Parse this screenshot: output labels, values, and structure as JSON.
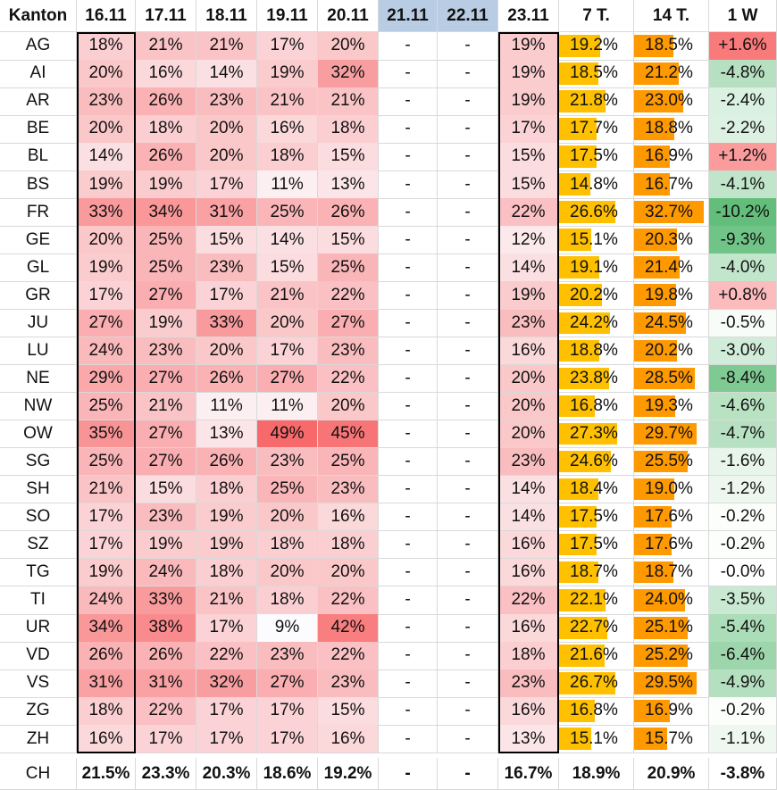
{
  "chart_data": {
    "type": "table",
    "columns": [
      "Kanton",
      "16.11",
      "17.11",
      "18.11",
      "19.11",
      "20.11",
      "21.11",
      "22.11",
      "23.11",
      "7 T.",
      "14 T.",
      "1 W"
    ],
    "rows": [
      [
        "AG",
        "18%",
        "21%",
        "21%",
        "17%",
        "20%",
        "-",
        "-",
        "19%",
        "19.2%",
        "18.5%",
        "+1.6%"
      ],
      [
        "AI",
        "20%",
        "16%",
        "14%",
        "19%",
        "32%",
        "-",
        "-",
        "19%",
        "18.5%",
        "21.2%",
        "-4.8%"
      ],
      [
        "AR",
        "23%",
        "26%",
        "23%",
        "21%",
        "21%",
        "-",
        "-",
        "19%",
        "21.8%",
        "23.0%",
        "-2.4%"
      ],
      [
        "BE",
        "20%",
        "18%",
        "20%",
        "16%",
        "18%",
        "-",
        "-",
        "17%",
        "17.7%",
        "18.8%",
        "-2.2%"
      ],
      [
        "BL",
        "14%",
        "26%",
        "20%",
        "18%",
        "15%",
        "-",
        "-",
        "15%",
        "17.5%",
        "16.9%",
        "+1.2%"
      ],
      [
        "BS",
        "19%",
        "19%",
        "17%",
        "11%",
        "13%",
        "-",
        "-",
        "15%",
        "14.8%",
        "16.7%",
        "-4.1%"
      ],
      [
        "FR",
        "33%",
        "34%",
        "31%",
        "25%",
        "26%",
        "-",
        "-",
        "22%",
        "26.6%",
        "32.7%",
        "-10.2%"
      ],
      [
        "GE",
        "20%",
        "25%",
        "15%",
        "14%",
        "15%",
        "-",
        "-",
        "12%",
        "15.1%",
        "20.3%",
        "-9.3%"
      ],
      [
        "GL",
        "19%",
        "25%",
        "23%",
        "15%",
        "25%",
        "-",
        "-",
        "14%",
        "19.1%",
        "21.4%",
        "-4.0%"
      ],
      [
        "GR",
        "17%",
        "27%",
        "17%",
        "21%",
        "22%",
        "-",
        "-",
        "19%",
        "20.2%",
        "19.8%",
        "+0.8%"
      ],
      [
        "JU",
        "27%",
        "19%",
        "33%",
        "20%",
        "27%",
        "-",
        "-",
        "23%",
        "24.2%",
        "24.5%",
        "-0.5%"
      ],
      [
        "LU",
        "24%",
        "23%",
        "20%",
        "17%",
        "23%",
        "-",
        "-",
        "16%",
        "18.8%",
        "20.2%",
        "-3.0%"
      ],
      [
        "NE",
        "29%",
        "27%",
        "26%",
        "27%",
        "22%",
        "-",
        "-",
        "20%",
        "23.8%",
        "28.5%",
        "-8.4%"
      ],
      [
        "NW",
        "25%",
        "21%",
        "11%",
        "11%",
        "20%",
        "-",
        "-",
        "20%",
        "16.8%",
        "19.3%",
        "-4.6%"
      ],
      [
        "OW",
        "35%",
        "27%",
        "13%",
        "49%",
        "45%",
        "-",
        "-",
        "20%",
        "27.3%",
        "29.7%",
        "-4.7%"
      ],
      [
        "SG",
        "25%",
        "27%",
        "26%",
        "23%",
        "25%",
        "-",
        "-",
        "23%",
        "24.6%",
        "25.5%",
        "-1.6%"
      ],
      [
        "SH",
        "21%",
        "15%",
        "18%",
        "25%",
        "23%",
        "-",
        "-",
        "14%",
        "18.4%",
        "19.0%",
        "-1.2%"
      ],
      [
        "SO",
        "17%",
        "23%",
        "19%",
        "20%",
        "16%",
        "-",
        "-",
        "14%",
        "17.5%",
        "17.6%",
        "-0.2%"
      ],
      [
        "SZ",
        "17%",
        "19%",
        "19%",
        "18%",
        "18%",
        "-",
        "-",
        "16%",
        "17.5%",
        "17.6%",
        "-0.2%"
      ],
      [
        "TG",
        "19%",
        "24%",
        "18%",
        "20%",
        "20%",
        "-",
        "-",
        "16%",
        "18.7%",
        "18.7%",
        "-0.0%"
      ],
      [
        "TI",
        "24%",
        "33%",
        "21%",
        "18%",
        "22%",
        "-",
        "-",
        "22%",
        "22.1%",
        "24.0%",
        "-3.5%"
      ],
      [
        "UR",
        "34%",
        "38%",
        "17%",
        "9%",
        "42%",
        "-",
        "-",
        "16%",
        "22.7%",
        "25.1%",
        "-5.4%"
      ],
      [
        "VD",
        "26%",
        "26%",
        "22%",
        "23%",
        "22%",
        "-",
        "-",
        "18%",
        "21.6%",
        "25.2%",
        "-6.4%"
      ],
      [
        "VS",
        "31%",
        "31%",
        "32%",
        "27%",
        "23%",
        "-",
        "-",
        "23%",
        "26.7%",
        "29.5%",
        "-4.9%"
      ],
      [
        "ZG",
        "18%",
        "22%",
        "17%",
        "17%",
        "15%",
        "-",
        "-",
        "16%",
        "16.8%",
        "16.9%",
        "-0.2%"
      ],
      [
        "ZH",
        "16%",
        "17%",
        "17%",
        "17%",
        "16%",
        "-",
        "-",
        "13%",
        "15.1%",
        "15.7%",
        "-1.1%"
      ]
    ],
    "total_row": [
      "CH",
      "21.5%",
      "23.3%",
      "20.3%",
      "18.6%",
      "19.2%",
      "-",
      "-",
      "16.7%",
      "18.9%",
      "20.9%",
      "-3.8%"
    ],
    "highlighted_columns": [
      "16.11",
      "23.11"
    ],
    "shaded_header_columns": [
      "21.11",
      "22.11"
    ],
    "bar_scale_max": 35,
    "colors": {
      "heat_strong": "#f8696b",
      "heat_light": "#fcfcff",
      "bar_7t": "#ffc000",
      "bar_14t": "#ff9900",
      "increase": "#f8696b",
      "decrease": "#63be7b",
      "header_shade": "#b8cce4"
    }
  }
}
